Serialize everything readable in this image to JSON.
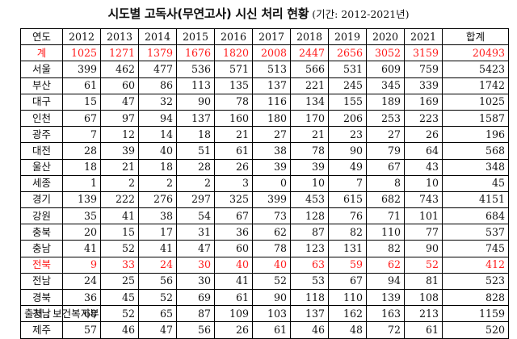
{
  "title": {
    "main": "시도별 고독사(무연고사) 시신 처리 현황",
    "sub": "(기간: 2012-2021년)"
  },
  "table": {
    "header": [
      "연도",
      "2012",
      "2013",
      "2014",
      "2015",
      "2016",
      "2017",
      "2018",
      "2019",
      "2020",
      "2021",
      "합계"
    ],
    "rows": [
      {
        "region": "계",
        "values": [
          "1025",
          "1271",
          "1379",
          "1676",
          "1820",
          "2008",
          "2447",
          "2656",
          "3052",
          "3159",
          "20493"
        ],
        "highlight": true
      },
      {
        "region": "서울",
        "values": [
          "399",
          "462",
          "477",
          "536",
          "571",
          "513",
          "566",
          "531",
          "609",
          "759",
          "5423"
        ],
        "highlight": false
      },
      {
        "region": "부산",
        "values": [
          "61",
          "60",
          "86",
          "113",
          "135",
          "137",
          "221",
          "245",
          "345",
          "339",
          "1742"
        ],
        "highlight": false
      },
      {
        "region": "대구",
        "values": [
          "15",
          "47",
          "32",
          "90",
          "78",
          "116",
          "134",
          "155",
          "189",
          "169",
          "1025"
        ],
        "highlight": false
      },
      {
        "region": "인천",
        "values": [
          "67",
          "97",
          "94",
          "137",
          "160",
          "180",
          "170",
          "206",
          "253",
          "223",
          "1587"
        ],
        "highlight": false
      },
      {
        "region": "광주",
        "values": [
          "7",
          "12",
          "14",
          "18",
          "21",
          "27",
          "21",
          "23",
          "27",
          "26",
          "196"
        ],
        "highlight": false
      },
      {
        "region": "대전",
        "values": [
          "28",
          "39",
          "40",
          "51",
          "61",
          "38",
          "78",
          "90",
          "79",
          "64",
          "568"
        ],
        "highlight": false
      },
      {
        "region": "울산",
        "values": [
          "18",
          "21",
          "18",
          "28",
          "26",
          "39",
          "39",
          "49",
          "67",
          "43",
          "348"
        ],
        "highlight": false
      },
      {
        "region": "세종",
        "values": [
          "1",
          "2",
          "2",
          "2",
          "3",
          "0",
          "10",
          "7",
          "8",
          "10",
          "45"
        ],
        "highlight": false
      },
      {
        "region": "경기",
        "values": [
          "139",
          "222",
          "276",
          "297",
          "325",
          "399",
          "453",
          "615",
          "682",
          "743",
          "4151"
        ],
        "highlight": false
      },
      {
        "region": "강원",
        "values": [
          "35",
          "41",
          "38",
          "54",
          "67",
          "73",
          "128",
          "76",
          "71",
          "101",
          "684"
        ],
        "highlight": false
      },
      {
        "region": "충북",
        "values": [
          "20",
          "15",
          "17",
          "31",
          "36",
          "62",
          "87",
          "82",
          "110",
          "77",
          "537"
        ],
        "highlight": false
      },
      {
        "region": "충남",
        "values": [
          "41",
          "52",
          "41",
          "47",
          "60",
          "78",
          "123",
          "131",
          "82",
          "90",
          "745"
        ],
        "highlight": false
      },
      {
        "region": "전북",
        "values": [
          "9",
          "33",
          "24",
          "30",
          "40",
          "40",
          "63",
          "59",
          "62",
          "52",
          "412"
        ],
        "highlight": true
      },
      {
        "region": "전남",
        "values": [
          "24",
          "25",
          "56",
          "30",
          "41",
          "52",
          "53",
          "67",
          "94",
          "81",
          "523"
        ],
        "highlight": false
      },
      {
        "region": "경북",
        "values": [
          "36",
          "45",
          "52",
          "69",
          "61",
          "90",
          "118",
          "110",
          "139",
          "108",
          "828"
        ],
        "highlight": false
      },
      {
        "region": "경남",
        "values": [
          "68",
          "52",
          "65",
          "87",
          "109",
          "103",
          "137",
          "162",
          "163",
          "213",
          "1159"
        ],
        "highlight": false
      },
      {
        "region": "제주",
        "values": [
          "57",
          "46",
          "47",
          "56",
          "26",
          "61",
          "46",
          "48",
          "72",
          "61",
          "520"
        ],
        "highlight": false
      }
    ]
  },
  "source": "출처 : 보건복지부",
  "colors": {
    "highlight": "#ff1a1a",
    "text": "#111111",
    "border": "#000000"
  }
}
